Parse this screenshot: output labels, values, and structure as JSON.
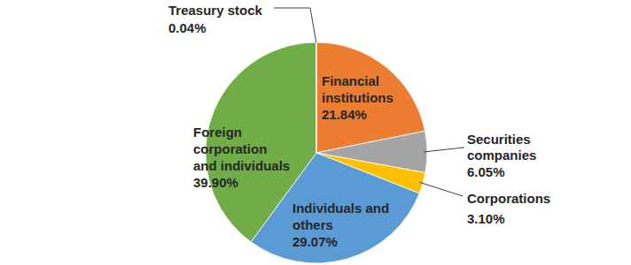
{
  "chart_data": {
    "type": "pie",
    "categories": [
      "Financial institutions",
      "Securities companies",
      "Corporations",
      "Individuals and others",
      "Foreign corporation and individuals",
      "Treasury stock"
    ],
    "values": [
      21.84,
      6.05,
      3.1,
      29.07,
      39.9,
      0.04
    ],
    "value_labels": [
      "21.84%",
      "6.05%",
      "3.10%",
      "29.07%",
      "39.90%",
      "0.04%"
    ],
    "colors": [
      "#ED7D31",
      "#A5A5A5",
      "#FFC000",
      "#5B9BD5",
      "#70AD47",
      "#4472C4"
    ],
    "data_labels": true
  }
}
